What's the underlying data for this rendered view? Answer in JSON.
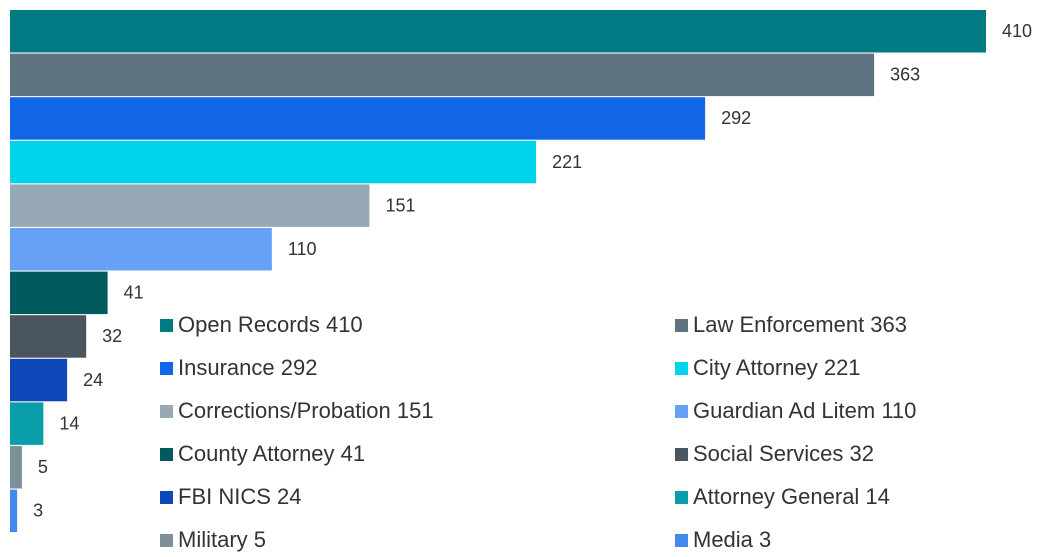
{
  "chart_data": {
    "type": "barh",
    "categories": [
      "Open Records 410",
      "Law Enforcement 363",
      "Insurance 292",
      "City Attorney 221",
      "Corrections/Probation 151",
      "Guardian Ad Litem 110",
      "County Attorney 41",
      "Social Services 32",
      "FBI NICS 24",
      "Attorney General 14",
      "Military 5",
      "Media 3"
    ],
    "values": [
      410,
      363,
      292,
      221,
      151,
      110,
      41,
      32,
      24,
      14,
      5,
      3
    ],
    "colors": [
      "#007b84",
      "#5f7480",
      "#1166e8",
      "#00d4ea",
      "#97a9b4",
      "#66a1f5",
      "#005a5e",
      "#4a565e",
      "#0d47b8",
      "#0a9eaa",
      "#7d8f99",
      "#4488ee"
    ]
  }
}
